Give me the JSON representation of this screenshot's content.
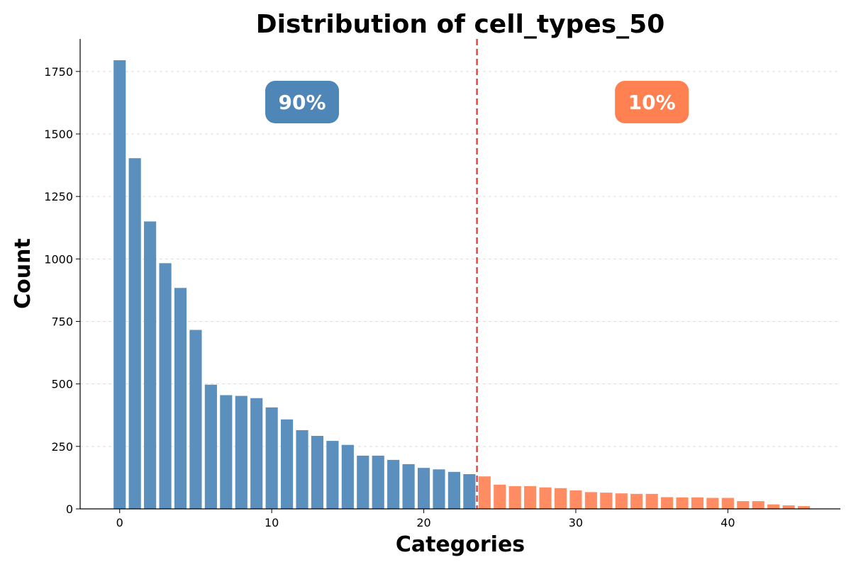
{
  "chart_data": {
    "type": "bar",
    "title": "Distribution of cell_types_50",
    "xlabel": "Categories",
    "ylabel": "Count",
    "x": [
      0,
      1,
      2,
      3,
      4,
      5,
      6,
      7,
      8,
      9,
      10,
      11,
      12,
      13,
      14,
      15,
      16,
      17,
      18,
      19,
      20,
      21,
      22,
      23,
      24,
      25,
      26,
      27,
      28,
      29,
      30,
      31,
      32,
      33,
      34,
      35,
      36,
      37,
      38,
      39,
      40,
      41,
      42,
      43,
      44,
      45
    ],
    "values": [
      1795,
      1403,
      1150,
      983,
      884,
      716,
      497,
      455,
      452,
      443,
      406,
      358,
      315,
      292,
      272,
      256,
      213,
      213,
      196,
      179,
      164,
      158,
      148,
      139,
      130,
      97,
      91,
      91,
      86,
      83,
      74,
      67,
      65,
      62,
      60,
      60,
      47,
      46,
      46,
      44,
      44,
      31,
      31,
      18,
      14,
      11
    ],
    "split_index": 24,
    "xlim": [
      -2.6,
      47.4
    ],
    "ylim": [
      0,
      1880
    ],
    "xticks": [
      0,
      10,
      20,
      30,
      40
    ],
    "yticks": [
      0,
      250,
      500,
      750,
      1000,
      1250,
      1500,
      1750
    ],
    "grid": true,
    "threshold_x": 23.5,
    "regions": [
      {
        "label": "90%",
        "color": "#4f86b8",
        "center_x": 12
      },
      {
        "label": "10%",
        "color": "#ff8050",
        "center_x": 35
      }
    ],
    "colors": {
      "head": "#5b8fbd",
      "tail": "#ff8c62",
      "threshold": "#e8453c"
    }
  }
}
